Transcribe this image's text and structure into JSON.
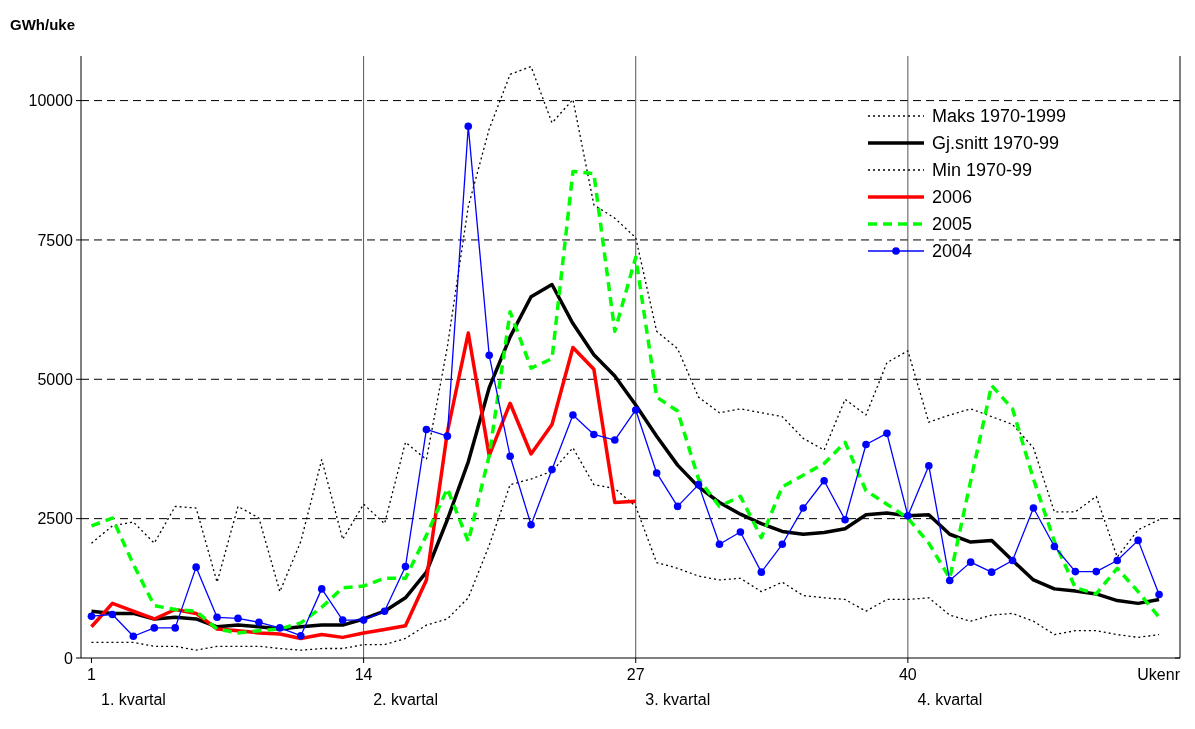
{
  "chart_data": {
    "type": "line",
    "ylabel": "GWh/uke",
    "xlabel": "Ukenr",
    "x": [
      1,
      2,
      3,
      4,
      5,
      6,
      7,
      8,
      9,
      10,
      11,
      12,
      13,
      14,
      15,
      16,
      17,
      18,
      19,
      20,
      21,
      22,
      23,
      24,
      25,
      26,
      27,
      28,
      29,
      30,
      31,
      32,
      33,
      34,
      35,
      36,
      37,
      38,
      39,
      40,
      41,
      42,
      43,
      44,
      45,
      46,
      47,
      48,
      49,
      50,
      51,
      52
    ],
    "xlim": [
      0.5,
      53
    ],
    "xticks": [
      1,
      14,
      27,
      40
    ],
    "ylim": [
      0,
      10800
    ],
    "yticks": [
      0,
      2500,
      5000,
      7500,
      10000
    ],
    "grid": true,
    "legend": "top right",
    "series": [
      {
        "name": "Maks 1970-1999",
        "color": "#000000",
        "line_style": "dotted",
        "marker": "none",
        "values": [
          2060,
          2370,
          2440,
          2060,
          2720,
          2690,
          1360,
          2720,
          2510,
          1190,
          2090,
          3560,
          2130,
          2760,
          2410,
          3870,
          3560,
          5580,
          8100,
          9490,
          10470,
          10610,
          9600,
          10020,
          8130,
          7890,
          7540,
          5860,
          5550,
          4680,
          4400,
          4470,
          4400,
          4330,
          3940,
          3730,
          4640,
          4360,
          5300,
          5510,
          4230,
          4360,
          4470,
          4330,
          4190,
          3770,
          2620,
          2620,
          2900,
          1810,
          2300,
          2480
        ]
      },
      {
        "name": "Gj.snitt 1970-99",
        "color": "#000000",
        "line_style": "solid",
        "marker": "none",
        "values": [
          840,
          800,
          800,
          700,
          730,
          700,
          560,
          590,
          560,
          520,
          560,
          590,
          590,
          700,
          840,
          1080,
          1540,
          2480,
          3520,
          4850,
          5760,
          6480,
          6700,
          6000,
          5440,
          5060,
          4540,
          3980,
          3460,
          3070,
          2790,
          2580,
          2410,
          2270,
          2220,
          2250,
          2320,
          2570,
          2600,
          2550,
          2570,
          2220,
          2080,
          2110,
          1750,
          1400,
          1240,
          1200,
          1150,
          1030,
          980,
          1050
        ]
      },
      {
        "name": "Min 1970-99",
        "color": "#000000",
        "line_style": "dotted",
        "marker": "none",
        "values": [
          280,
          280,
          280,
          210,
          210,
          140,
          210,
          210,
          210,
          170,
          140,
          170,
          170,
          240,
          240,
          350,
          590,
          700,
          1080,
          2020,
          3110,
          3210,
          3350,
          3770,
          3110,
          3040,
          2720,
          1710,
          1610,
          1470,
          1400,
          1430,
          1190,
          1360,
          1120,
          1080,
          1050,
          840,
          1050,
          1050,
          1080,
          770,
          660,
          770,
          800,
          660,
          420,
          490,
          490,
          420,
          370,
          420
        ]
      },
      {
        "name": "2006",
        "color": "#ff0000",
        "line_style": "solid",
        "marker": "none",
        "values": [
          560,
          980,
          840,
          700,
          870,
          800,
          520,
          490,
          450,
          430,
          350,
          420,
          370,
          450,
          510,
          580,
          1400,
          4050,
          5830,
          3630,
          4570,
          3660,
          4190,
          5570,
          5180,
          2790,
          2810,
          null,
          null,
          null,
          null,
          null,
          null,
          null,
          null,
          null,
          null,
          null,
          null,
          null,
          null,
          null,
          null,
          null,
          null,
          null,
          null,
          null,
          null,
          null,
          null,
          null
        ]
      },
      {
        "name": "2005",
        "color": "#00ff00",
        "line_style": "dashed",
        "marker": "none",
        "values": [
          2370,
          2510,
          1680,
          940,
          870,
          840,
          520,
          450,
          490,
          520,
          630,
          910,
          1260,
          1290,
          1430,
          1430,
          2200,
          3040,
          2090,
          3630,
          6210,
          5200,
          5370,
          8730,
          8690,
          5860,
          7190,
          4680,
          4430,
          3210,
          2720,
          2900,
          2160,
          3070,
          3280,
          3490,
          3870,
          3000,
          2760,
          2510,
          2060,
          1430,
          3180,
          4890,
          4470,
          3210,
          2090,
          1260,
          1150,
          1610,
          1190,
          730
        ]
      },
      {
        "name": "2004",
        "color": "#0000ff",
        "line_style": "solid",
        "marker": "circle",
        "values": [
          750,
          780,
          390,
          540,
          540,
          1630,
          730,
          710,
          640,
          540,
          400,
          1240,
          680,
          680,
          840,
          1640,
          4100,
          3980,
          9540,
          5430,
          3620,
          2390,
          3380,
          4360,
          4010,
          3910,
          4450,
          3320,
          2720,
          3110,
          2040,
          2260,
          1540,
          2040,
          2690,
          3180,
          2480,
          3830,
          4030,
          2550,
          3450,
          1390,
          1720,
          1540,
          1750,
          2690,
          2000,
          1550,
          1550,
          1750,
          2110,
          1140
        ]
      }
    ],
    "annotations": [
      "1. kvartal",
      "2. kvartal",
      "3. kvartal",
      "4. kvartal"
    ]
  }
}
